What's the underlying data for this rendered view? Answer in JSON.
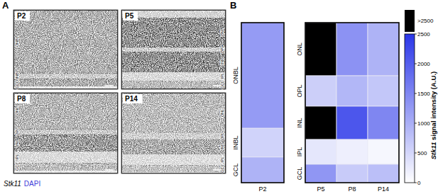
{
  "panel_labels": [
    "A",
    "B"
  ],
  "panel_a": {
    "caption": [
      "Stk11",
      "DAPI"
    ],
    "images": [
      {
        "title": "P2",
        "layers": [
          "ONBL",
          "INBL",
          "GCL"
        ]
      },
      {
        "title": "P5",
        "layers": [
          "ONL",
          "OPL",
          "INL",
          "IPL",
          "GCL"
        ]
      },
      {
        "title": "P8",
        "layers": [
          "ONL",
          "OPL",
          "INL",
          "IPL",
          "GCL"
        ]
      },
      {
        "title": "P14",
        "layers": [
          "ONL",
          "OPL",
          "INL",
          "IPL",
          "GCL"
        ]
      }
    ]
  },
  "chart_data": [
    {
      "type": "heatmap",
      "columns": [
        "P2"
      ],
      "rows": [
        "ONBL",
        "INBL",
        "GCL"
      ],
      "cells": [
        [
          1250
        ],
        [
          550
        ],
        [
          950
        ]
      ]
    },
    {
      "type": "heatmap",
      "columns": [
        "P5",
        "P8",
        "P14"
      ],
      "rows": [
        "ONL",
        "OPL",
        "INL",
        "IPL",
        "GCL"
      ],
      "cells": [
        [
          3000,
          1350,
          950
        ],
        [
          600,
          900,
          700
        ],
        [
          3000,
          2100,
          1500
        ],
        [
          300,
          200,
          100
        ],
        [
          1300,
          650,
          800
        ]
      ]
    }
  ],
  "colorbar": {
    "title": "Stk11 signal intensity (A.U.)",
    "range": [
      0,
      2500
    ],
    "ticks": [
      0,
      500,
      1000,
      1500,
      2000,
      2500
    ],
    "overflow_label": ">2500",
    "color": "#2a36e8"
  }
}
